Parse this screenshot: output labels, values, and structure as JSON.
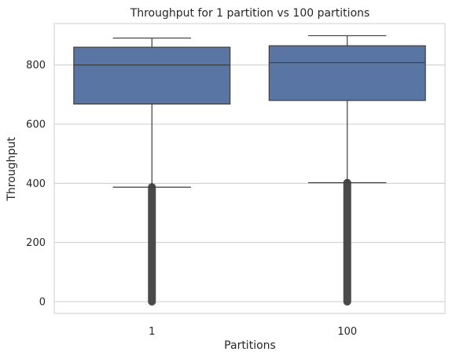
{
  "chart_data": {
    "type": "box",
    "title": "Throughput for 1 partition vs 100 partitions",
    "xlabel": "Partitions",
    "ylabel": "Throughput",
    "categories": [
      "1",
      "100"
    ],
    "ylim": [
      -40,
      940
    ],
    "yticks": [
      0,
      200,
      400,
      600,
      800
    ],
    "grid": "horizontal",
    "colors": {
      "box_fill": "#5975a4",
      "line": "#3d3d3d",
      "outlier": "#4a4a4a",
      "grid": "#cccccc",
      "frame": "#cccccc"
    },
    "boxes": [
      {
        "category": "1",
        "whisker_low": 387,
        "q1": 668,
        "median": 800,
        "q3": 860,
        "whisker_high": 891,
        "outlier_range": [
          0,
          387
        ]
      },
      {
        "category": "100",
        "whisker_low": 402,
        "q1": 680,
        "median": 808,
        "q3": 865,
        "whisker_high": 899,
        "outlier_range": [
          0,
          402
        ]
      }
    ]
  }
}
